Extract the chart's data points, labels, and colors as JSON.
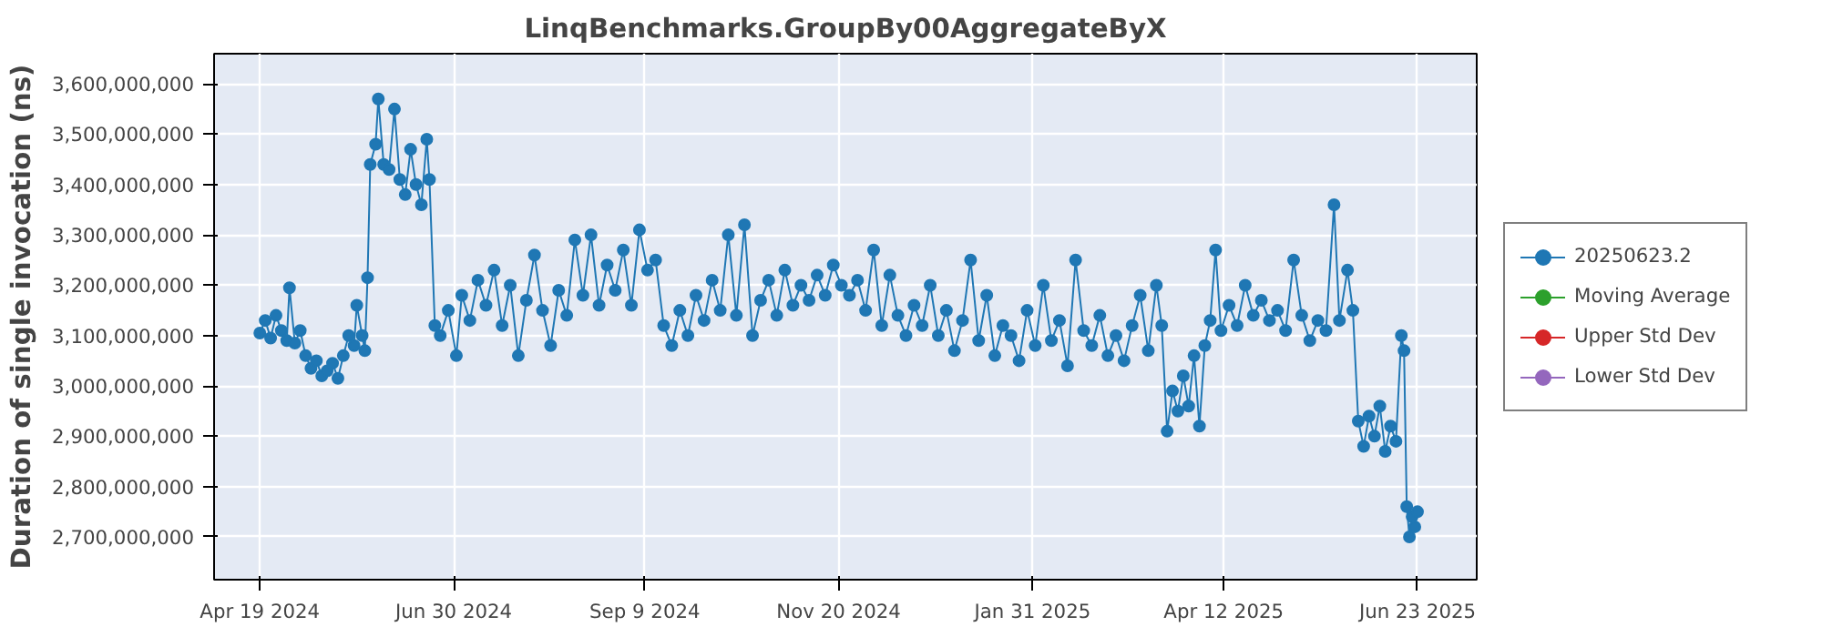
{
  "chart_data": {
    "type": "line",
    "title": "LinqBenchmarks.GroupBy00AggregateByX",
    "ylabel": "Duration of single invocation (ns)",
    "xlim": [
      "2024-04-02",
      "2025-07-15"
    ],
    "xticks": [
      {
        "value": "2024-04-19",
        "label": "Apr 19 2024"
      },
      {
        "value": "2024-06-30",
        "label": "Jun 30 2024"
      },
      {
        "value": "2024-09-09",
        "label": "Sep 9 2024"
      },
      {
        "value": "2024-11-20",
        "label": "Nov 20 2024"
      },
      {
        "value": "2025-01-31",
        "label": "Jan 31 2025"
      },
      {
        "value": "2025-04-12",
        "label": "Apr 12 2025"
      },
      {
        "value": "2025-06-23",
        "label": "Jun 23 2025"
      }
    ],
    "ylim": [
      2615000000,
      3660000000
    ],
    "yticks": [
      {
        "value": 2700000000,
        "label": "2,700,000,000"
      },
      {
        "value": 2800000000,
        "label": "2,800,000,000"
      },
      {
        "value": 2900000000,
        "label": "2,900,000,000"
      },
      {
        "value": 3000000000,
        "label": "3,000,000,000"
      },
      {
        "value": 3100000000,
        "label": "3,100,000,000"
      },
      {
        "value": 3200000000,
        "label": "3,200,000,000"
      },
      {
        "value": 3300000000,
        "label": "3,300,000,000"
      },
      {
        "value": 3400000000,
        "label": "3,400,000,000"
      },
      {
        "value": 3500000000,
        "label": "3,500,000,000"
      },
      {
        "value": 3600000000,
        "label": "3,600,000,000"
      }
    ],
    "grid": true,
    "legend": "right",
    "marker": "circle",
    "line_style": "solid",
    "x": [
      "2024-04-19",
      "2024-04-21",
      "2024-04-23",
      "2024-04-25",
      "2024-04-27",
      "2024-04-29",
      "2024-04-30",
      "2024-05-02",
      "2024-05-04",
      "2024-05-06",
      "2024-05-08",
      "2024-05-10",
      "2024-05-12",
      "2024-05-14",
      "2024-05-16",
      "2024-05-18",
      "2024-05-20",
      "2024-05-22",
      "2024-05-24",
      "2024-05-25",
      "2024-05-27",
      "2024-05-28",
      "2024-05-29",
      "2024-05-30",
      "2024-06-01",
      "2024-06-02",
      "2024-06-04",
      "2024-06-06",
      "2024-06-08",
      "2024-06-10",
      "2024-06-12",
      "2024-06-14",
      "2024-06-16",
      "2024-06-18",
      "2024-06-20",
      "2024-06-21",
      "2024-06-23",
      "2024-06-25",
      "2024-06-28",
      "2024-07-01",
      "2024-07-03",
      "2024-07-06",
      "2024-07-09",
      "2024-07-12",
      "2024-07-15",
      "2024-07-18",
      "2024-07-21",
      "2024-07-24",
      "2024-07-27",
      "2024-07-30",
      "2024-08-02",
      "2024-08-05",
      "2024-08-08",
      "2024-08-11",
      "2024-08-14",
      "2024-08-17",
      "2024-08-20",
      "2024-08-23",
      "2024-08-26",
      "2024-08-29",
      "2024-09-01",
      "2024-09-04",
      "2024-09-07",
      "2024-09-10",
      "2024-09-13",
      "2024-09-16",
      "2024-09-19",
      "2024-09-22",
      "2024-09-25",
      "2024-09-28",
      "2024-10-01",
      "2024-10-04",
      "2024-10-07",
      "2024-10-10",
      "2024-10-13",
      "2024-10-16",
      "2024-10-19",
      "2024-10-22",
      "2024-10-25",
      "2024-10-28",
      "2024-10-31",
      "2024-11-03",
      "2024-11-06",
      "2024-11-09",
      "2024-11-12",
      "2024-11-15",
      "2024-11-18",
      "2024-11-21",
      "2024-11-24",
      "2024-11-27",
      "2024-11-30",
      "2024-12-03",
      "2024-12-06",
      "2024-12-09",
      "2024-12-12",
      "2024-12-15",
      "2024-12-18",
      "2024-12-21",
      "2024-12-24",
      "2024-12-27",
      "2024-12-30",
      "2025-01-02",
      "2025-01-05",
      "2025-01-08",
      "2025-01-11",
      "2025-01-14",
      "2025-01-17",
      "2025-01-20",
      "2025-01-23",
      "2025-01-26",
      "2025-01-29",
      "2025-02-01",
      "2025-02-04",
      "2025-02-07",
      "2025-02-10",
      "2025-02-13",
      "2025-02-16",
      "2025-02-19",
      "2025-02-22",
      "2025-02-25",
      "2025-02-28",
      "2025-03-03",
      "2025-03-06",
      "2025-03-09",
      "2025-03-12",
      "2025-03-15",
      "2025-03-18",
      "2025-03-20",
      "2025-03-22",
      "2025-03-24",
      "2025-03-26",
      "2025-03-28",
      "2025-03-30",
      "2025-04-01",
      "2025-04-03",
      "2025-04-05",
      "2025-04-07",
      "2025-04-09",
      "2025-04-11",
      "2025-04-14",
      "2025-04-17",
      "2025-04-20",
      "2025-04-23",
      "2025-04-26",
      "2025-04-29",
      "2025-05-02",
      "2025-05-05",
      "2025-05-08",
      "2025-05-11",
      "2025-05-14",
      "2025-05-17",
      "2025-05-20",
      "2025-05-23",
      "2025-05-25",
      "2025-05-28",
      "2025-05-30",
      "2025-06-01",
      "2025-06-03",
      "2025-06-05",
      "2025-06-07",
      "2025-06-09",
      "2025-06-11",
      "2025-06-13",
      "2025-06-15",
      "2025-06-17",
      "2025-06-18",
      "2025-06-19",
      "2025-06-20",
      "2025-06-21",
      "2025-06-22",
      "2025-06-23"
    ],
    "series": [
      {
        "name": "20250623.2",
        "color": "#1f77b4",
        "values": [
          3105000000,
          3130000000,
          3095000000,
          3140000000,
          3110000000,
          3090000000,
          3195000000,
          3085000000,
          3110000000,
          3060000000,
          3035000000,
          3050000000,
          3020000000,
          3030000000,
          3045000000,
          3015000000,
          3060000000,
          3100000000,
          3080000000,
          3160000000,
          3100000000,
          3070000000,
          3215000000,
          3440000000,
          3480000000,
          3570000000,
          3440000000,
          3430000000,
          3550000000,
          3410000000,
          3380000000,
          3470000000,
          3400000000,
          3360000000,
          3490000000,
          3410000000,
          3120000000,
          3100000000,
          3150000000,
          3060000000,
          3180000000,
          3130000000,
          3210000000,
          3160000000,
          3230000000,
          3120000000,
          3200000000,
          3060000000,
          3170000000,
          3260000000,
          3150000000,
          3080000000,
          3190000000,
          3140000000,
          3290000000,
          3180000000,
          3300000000,
          3160000000,
          3240000000,
          3190000000,
          3270000000,
          3160000000,
          3310000000,
          3230000000,
          3250000000,
          3120000000,
          3080000000,
          3150000000,
          3100000000,
          3180000000,
          3130000000,
          3210000000,
          3150000000,
          3300000000,
          3140000000,
          3320000000,
          3100000000,
          3170000000,
          3210000000,
          3140000000,
          3230000000,
          3160000000,
          3200000000,
          3170000000,
          3220000000,
          3180000000,
          3240000000,
          3200000000,
          3180000000,
          3210000000,
          3150000000,
          3270000000,
          3120000000,
          3220000000,
          3140000000,
          3100000000,
          3160000000,
          3120000000,
          3200000000,
          3100000000,
          3150000000,
          3070000000,
          3130000000,
          3250000000,
          3090000000,
          3180000000,
          3060000000,
          3120000000,
          3100000000,
          3050000000,
          3150000000,
          3080000000,
          3200000000,
          3090000000,
          3130000000,
          3040000000,
          3250000000,
          3110000000,
          3080000000,
          3140000000,
          3060000000,
          3100000000,
          3050000000,
          3120000000,
          3180000000,
          3070000000,
          3200000000,
          3120000000,
          2910000000,
          2990000000,
          2950000000,
          3020000000,
          2960000000,
          3060000000,
          2920000000,
          3080000000,
          3130000000,
          3270000000,
          3110000000,
          3160000000,
          3120000000,
          3200000000,
          3140000000,
          3170000000,
          3130000000,
          3150000000,
          3110000000,
          3250000000,
          3140000000,
          3090000000,
          3130000000,
          3110000000,
          3360000000,
          3130000000,
          3230000000,
          3150000000,
          2930000000,
          2880000000,
          2940000000,
          2900000000,
          2960000000,
          2870000000,
          2920000000,
          2890000000,
          3100000000,
          3070000000,
          2760000000,
          2700000000,
          2740000000,
          2720000000,
          2750000000
        ]
      },
      {
        "name": "Moving Average",
        "color": "#2ca02c",
        "values": [
          null,
          null,
          null,
          null,
          null,
          null,
          null,
          null,
          null,
          null,
          null,
          null,
          null,
          null,
          null,
          null,
          null,
          null,
          null,
          null,
          null,
          null,
          null,
          null,
          null,
          null,
          null,
          null,
          null,
          null,
          null,
          null,
          null,
          null,
          null,
          null,
          null,
          null,
          null,
          null,
          null,
          null,
          null,
          null,
          null,
          null,
          null,
          null,
          null,
          null,
          null,
          null,
          null,
          null,
          null,
          null,
          null,
          null,
          null,
          null,
          null,
          null,
          null,
          null,
          null,
          null,
          null,
          null,
          null,
          null,
          null,
          null,
          null,
          null,
          null,
          null,
          null,
          null,
          null,
          null,
          null,
          null,
          null,
          null,
          null,
          null,
          null,
          null,
          null,
          null,
          null,
          null,
          null,
          null,
          null,
          null,
          null,
          null,
          null,
          null,
          null,
          null,
          null,
          null,
          null,
          null,
          null,
          null,
          null,
          null,
          null,
          null,
          null,
          null,
          null,
          null,
          null,
          null,
          null,
          null,
          null,
          null,
          null,
          null,
          null,
          null,
          null,
          null,
          null,
          null,
          null,
          null,
          null,
          null,
          null,
          null,
          null,
          null,
          null,
          null,
          null,
          null,
          null,
          null,
          null,
          null,
          null,
          null,
          null,
          null,
          null,
          null,
          null,
          null,
          null,
          null,
          null,
          null,
          null,
          null,
          null,
          null,
          null,
          null,
          null,
          null,
          null,
          null,
          null,
          null,
          null
        ]
      },
      {
        "name": "Upper Std Dev",
        "color": "#d62728",
        "values": [
          null,
          null,
          null,
          null,
          null,
          null,
          null,
          null,
          null,
          null,
          null,
          null,
          null,
          null,
          null,
          null,
          null,
          null,
          null,
          null,
          null,
          null,
          null,
          null,
          null,
          null,
          null,
          null,
          null,
          null,
          null,
          null,
          null,
          null,
          null,
          null,
          null,
          null,
          null,
          null,
          null,
          null,
          null,
          null,
          null,
          null,
          null,
          null,
          null,
          null,
          null,
          null,
          null,
          null,
          null,
          null,
          null,
          null,
          null,
          null,
          null,
          null,
          null,
          null,
          null,
          null,
          null,
          null,
          null,
          null,
          null,
          null,
          null,
          null,
          null,
          null,
          null,
          null,
          null,
          null,
          null,
          null,
          null,
          null,
          null,
          null,
          null,
          null,
          null,
          null,
          null,
          null,
          null,
          null,
          null,
          null,
          null,
          null,
          null,
          null,
          null,
          null,
          null,
          null,
          null,
          null,
          null,
          null,
          null,
          null,
          null,
          null,
          null,
          null,
          null,
          null,
          null,
          null,
          null,
          null,
          null,
          null,
          null,
          null,
          null,
          null,
          null,
          null,
          null,
          null,
          null,
          null,
          null,
          null,
          null,
          null,
          null,
          null,
          null,
          null,
          null,
          null,
          null,
          null,
          null,
          null,
          null,
          null,
          null,
          null,
          null,
          null,
          null,
          null,
          null,
          null,
          null,
          null,
          null,
          null,
          null,
          null,
          null,
          null,
          null,
          null,
          null,
          null,
          null,
          null,
          null
        ]
      },
      {
        "name": "Lower Std Dev",
        "color": "#9467bd",
        "values": [
          null,
          null,
          null,
          null,
          null,
          null,
          null,
          null,
          null,
          null,
          null,
          null,
          null,
          null,
          null,
          null,
          null,
          null,
          null,
          null,
          null,
          null,
          null,
          null,
          null,
          null,
          null,
          null,
          null,
          null,
          null,
          null,
          null,
          null,
          null,
          null,
          null,
          null,
          null,
          null,
          null,
          null,
          null,
          null,
          null,
          null,
          null,
          null,
          null,
          null,
          null,
          null,
          null,
          null,
          null,
          null,
          null,
          null,
          null,
          null,
          null,
          null,
          null,
          null,
          null,
          null,
          null,
          null,
          null,
          null,
          null,
          null,
          null,
          null,
          null,
          null,
          null,
          null,
          null,
          null,
          null,
          null,
          null,
          null,
          null,
          null,
          null,
          null,
          null,
          null,
          null,
          null,
          null,
          null,
          null,
          null,
          null,
          null,
          null,
          null,
          null,
          null,
          null,
          null,
          null,
          null,
          null,
          null,
          null,
          null,
          null,
          null,
          null,
          null,
          null,
          null,
          null,
          null,
          null,
          null,
          null,
          null,
          null,
          null,
          null,
          null,
          null,
          null,
          null,
          null,
          null,
          null,
          null,
          null,
          null,
          null,
          null,
          null,
          null,
          null,
          null,
          null,
          null,
          null,
          null,
          null,
          null,
          null,
          null,
          null,
          null,
          null,
          null,
          null,
          null,
          null,
          null,
          null,
          null,
          null,
          null,
          null,
          null,
          null,
          null,
          null,
          null,
          null,
          null,
          null,
          null
        ]
      }
    ]
  }
}
